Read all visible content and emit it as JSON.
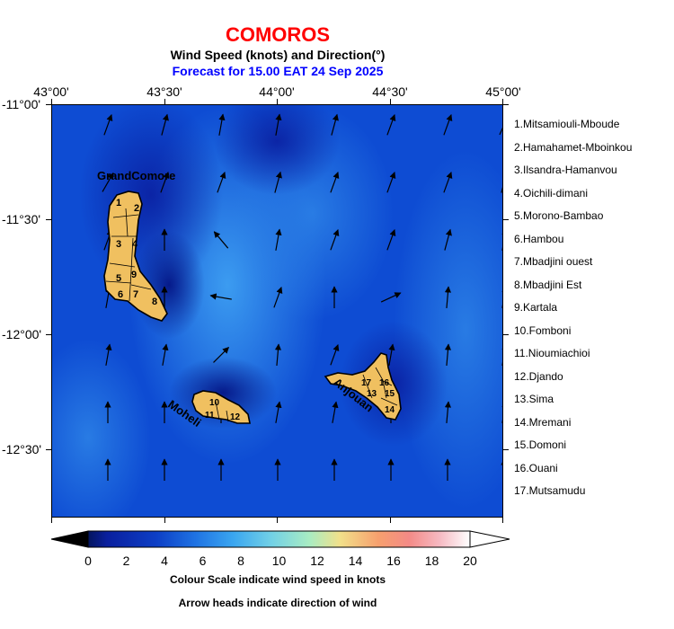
{
  "header": {
    "country": "COMOROS",
    "subtitle": "Wind Speed (knots) and Direction(°)",
    "forecast": "Forecast for  15.00 EAT 24 Sep 2025"
  },
  "axes": {
    "lon_labels": [
      "43°00'",
      "43°30'",
      "44°00'",
      "44°30'",
      "45°00'"
    ],
    "lat_labels": [
      "-11°00'",
      "-11°30'",
      "-12°00'",
      "-12°30'"
    ]
  },
  "islands": {
    "grande_comore": "GrandComore",
    "moheli": "Moheli",
    "anjouan": "Anjouan",
    "region_numbers_grande": [
      "1",
      "2",
      "3",
      "4",
      "5",
      "9",
      "6",
      "7",
      "8"
    ],
    "region_numbers_moheli": [
      "10",
      "11",
      "12"
    ],
    "region_numbers_anjouan": [
      "17",
      "16",
      "13",
      "15",
      "14"
    ]
  },
  "legend": {
    "regions": [
      "1.Mitsamiouli-Mboude",
      "2.Hamahamet-Mboinkou",
      "3.Ilsandra-Hamanvou",
      "4.Oichili-dimani",
      "5.Morono-Bambao",
      "6.Hambou",
      "7.Mbadjini ouest",
      "8.Mbadjini Est",
      "9.Kartala",
      "10.Fomboni",
      "11.Nioumiachioi",
      "12.Djando",
      "13.Sima",
      "14.Mremani",
      "15.Domoni",
      "16.Ouani",
      "17.Mutsamudu"
    ]
  },
  "colorbar": {
    "ticks": [
      "0",
      "2",
      "4",
      "6",
      "8",
      "10",
      "12",
      "14",
      "16",
      "18",
      "20"
    ],
    "colors": [
      "#000000",
      "#0a1f9e",
      "#0d3fc6",
      "#1f72e3",
      "#3aa6f0",
      "#72d1e6",
      "#a9ecc2",
      "#f2e08a",
      "#f6a06e",
      "#f48a86",
      "#f6b9c2",
      "#ffffff"
    ],
    "caption1": "Colour Scale indicate wind speed in knots",
    "caption2": "Arrow heads indicate direction of wind"
  },
  "colors": {
    "title": "#ff0000",
    "forecast": "#0000ff",
    "island_fill": "#f0c060",
    "ocean_base": "#0c47d0"
  },
  "wind_arrows_degrees": [
    [
      200,
      195,
      190,
      190,
      195,
      200,
      200,
      205
    ],
    [
      210,
      200,
      200,
      195,
      200,
      200,
      200,
      195
    ],
    [
      200,
      180,
      140,
      190,
      200,
      200,
      195,
      190
    ],
    [
      190,
      180,
      100,
      200,
      180,
      245,
      185,
      190
    ],
    [
      190,
      190,
      225,
      185,
      200,
      190,
      185,
      190
    ],
    [
      180,
      180,
      180,
      190,
      190,
      180,
      185,
      190
    ],
    [
      180,
      180,
      180,
      180,
      180,
      180,
      180,
      180
    ]
  ]
}
